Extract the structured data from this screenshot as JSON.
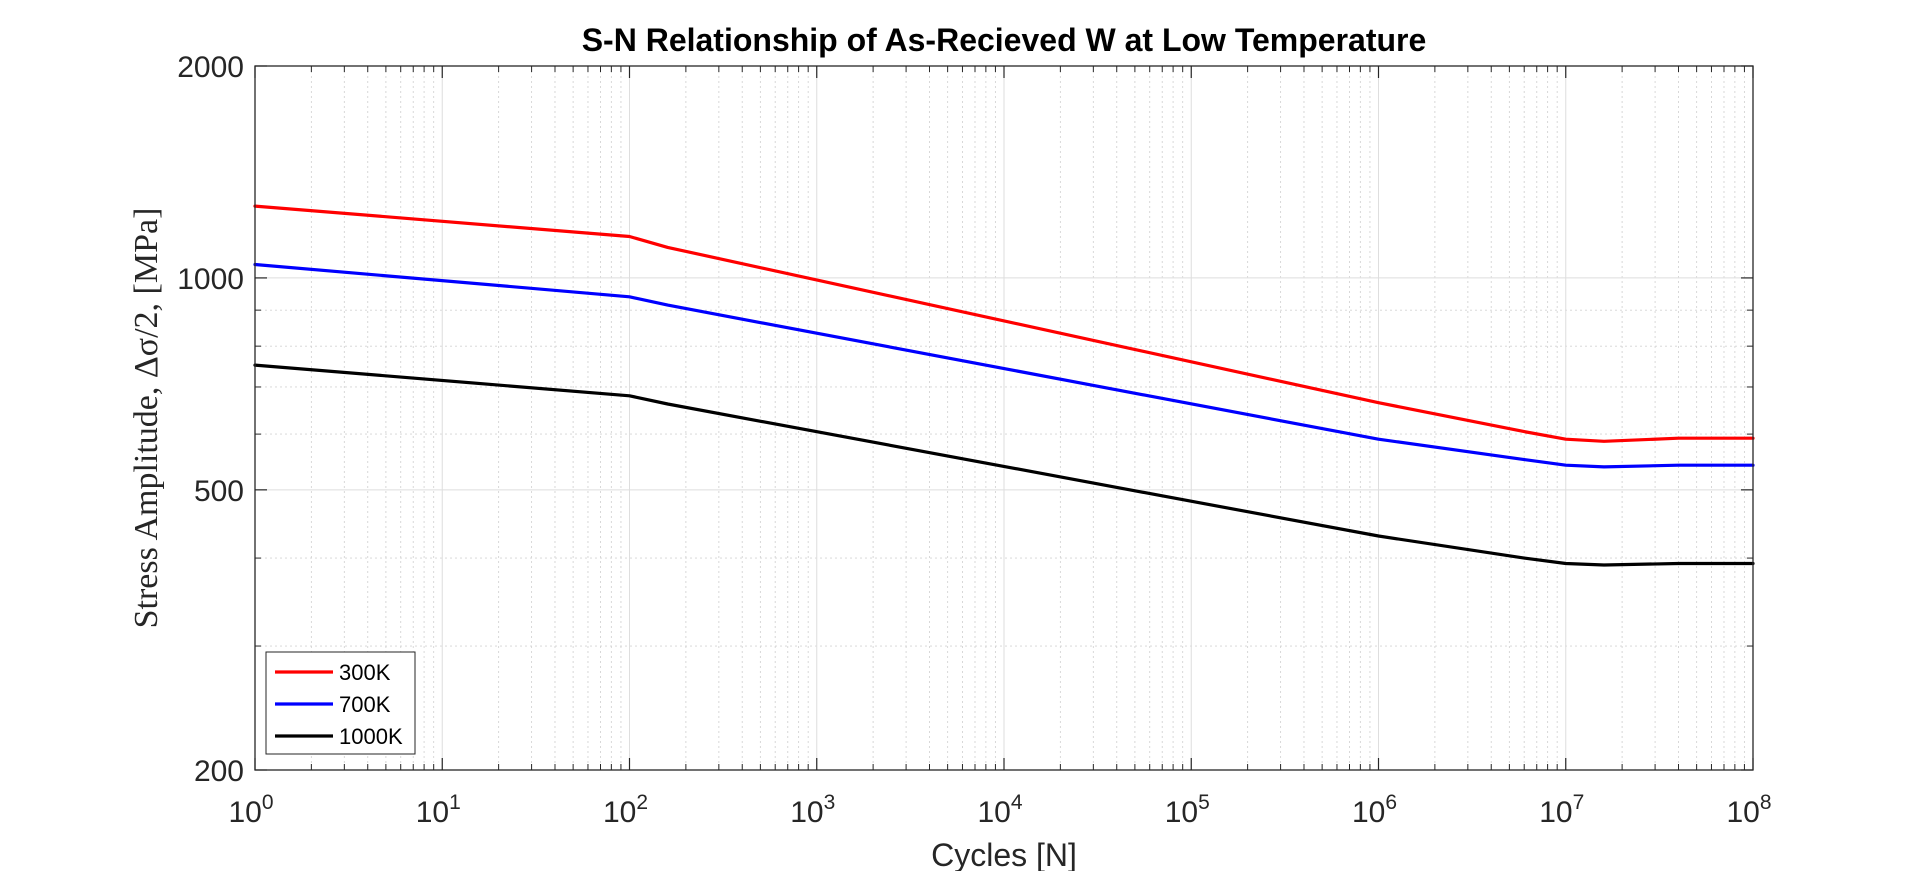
{
  "chart_data": {
    "type": "line",
    "title": "S-N Relationship of As-Recieved W at Low Temperature",
    "xlabel": "Cycles [N]",
    "ylabel": "Stress Amplitude, Δσ/2, [MPa]",
    "xscale": "log",
    "yscale": "log",
    "xlim": [
      1,
      100000000
    ],
    "ylim": [
      200,
      2000
    ],
    "grid": true,
    "legend_location": "bottom-left",
    "x_ticks": [
      {
        "base": "10",
        "exp": "0",
        "value": 1
      },
      {
        "base": "10",
        "exp": "1",
        "value": 10
      },
      {
        "base": "10",
        "exp": "2",
        "value": 100
      },
      {
        "base": "10",
        "exp": "3",
        "value": 1000
      },
      {
        "base": "10",
        "exp": "4",
        "value": 10000
      },
      {
        "base": "10",
        "exp": "5",
        "value": 100000
      },
      {
        "base": "10",
        "exp": "6",
        "value": 1000000
      },
      {
        "base": "10",
        "exp": "7",
        "value": 10000000
      },
      {
        "base": "10",
        "exp": "8",
        "value": 100000000
      }
    ],
    "y_ticks": [
      {
        "label": "200",
        "value": 200
      },
      {
        "label": "500",
        "value": 500
      },
      {
        "label": "1000",
        "value": 1000
      },
      {
        "label": "2000",
        "value": 2000
      }
    ],
    "x": [
      1,
      100,
      160,
      1000000,
      6000000,
      10000000,
      16000000,
      40000000,
      100000000
    ],
    "series": [
      {
        "name": "300K",
        "color": "#ff0000",
        "values": [
          1265,
          1145,
          1105,
          665,
          605,
          590,
          586,
          592,
          592
        ]
      },
      {
        "name": "700K",
        "color": "#0000ff",
        "values": [
          1045,
          940,
          915,
          590,
          552,
          542,
          539,
          542,
          542
        ]
      },
      {
        "name": "1000K",
        "color": "#000000",
        "values": [
          752,
          680,
          662,
          430,
          400,
          393,
          391,
          393,
          393
        ]
      }
    ]
  }
}
